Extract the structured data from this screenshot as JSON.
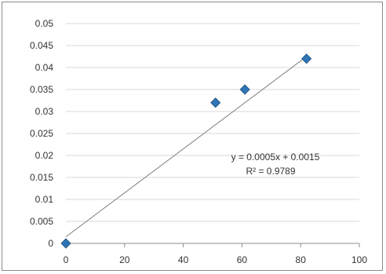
{
  "chart_data": {
    "type": "scatter",
    "title": "",
    "xlabel": "",
    "ylabel": "",
    "xlim": [
      0,
      100
    ],
    "ylim": [
      0,
      0.05
    ],
    "x_ticks": [
      0,
      20,
      40,
      60,
      80,
      100
    ],
    "y_ticks": [
      0,
      0.005,
      0.01,
      0.015,
      0.02,
      0.025,
      0.03,
      0.035,
      0.04,
      0.045,
      0.05
    ],
    "x_tick_labels": [
      "0",
      "20",
      "40",
      "60",
      "80",
      "100"
    ],
    "y_tick_labels": [
      "0",
      "0.005",
      "0.01",
      "0.015",
      "0.02",
      "0.025",
      "0.03",
      "0.035",
      "0.04",
      "0.045",
      "0.05"
    ],
    "grid": "horizontal",
    "legend": "none",
    "series": [
      {
        "points": [
          {
            "x": 0,
            "y": 0
          },
          {
            "x": 51,
            "y": 0.032
          },
          {
            "x": 61,
            "y": 0.035
          },
          {
            "x": 82,
            "y": 0.042
          }
        ],
        "marker": "diamond",
        "color": "#2e75b6"
      }
    ],
    "trendline": {
      "type": "linear",
      "slope": 0.0005,
      "intercept": 0.0015,
      "x_range": [
        0,
        81
      ],
      "color": "#7f7f7f",
      "equation_text": "y = 0.0005x + 0.0015",
      "r2_text": "R² = 0.9789"
    },
    "grid_color": "#d9d9d9",
    "axis_color": "#8c8c8c"
  }
}
